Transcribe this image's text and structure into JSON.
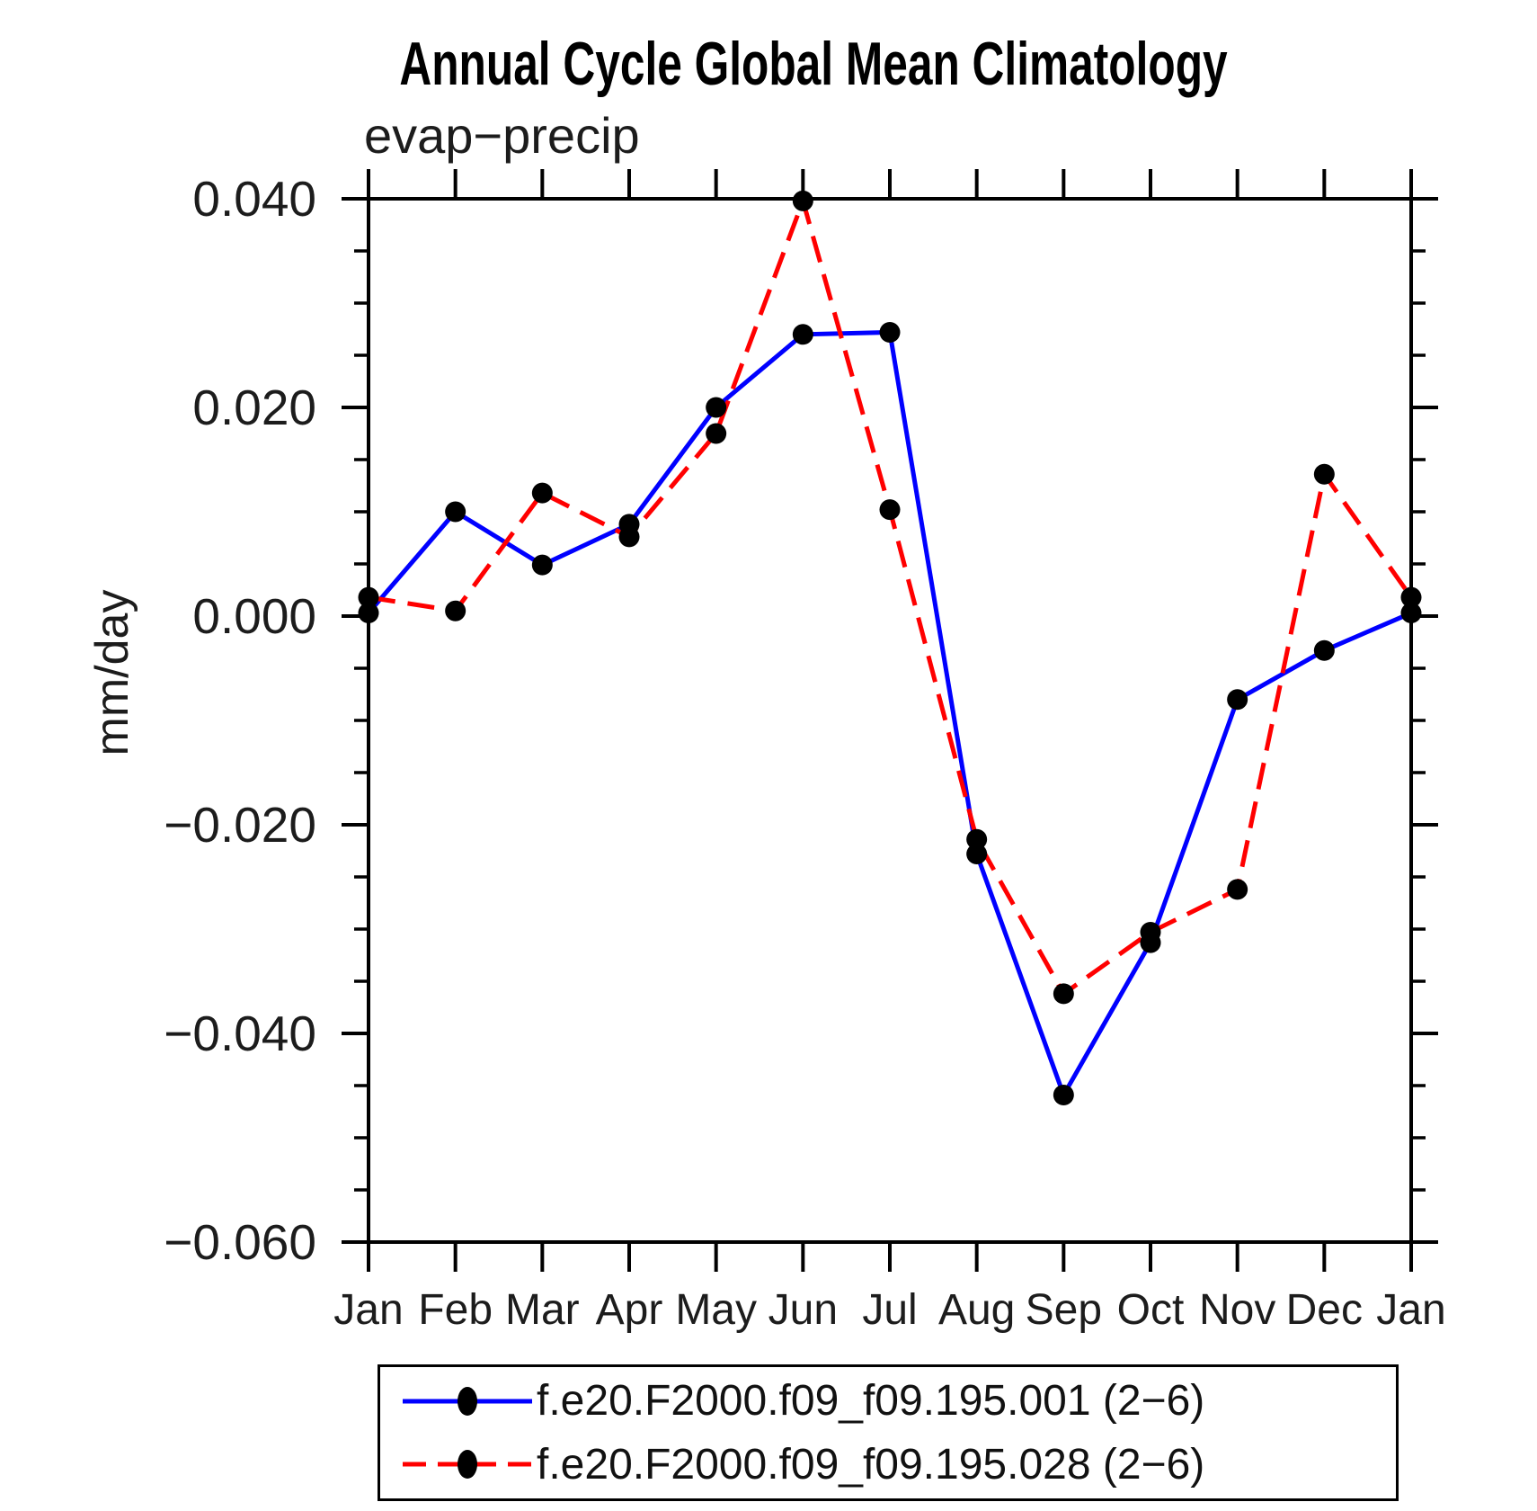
{
  "chart_data": {
    "type": "line",
    "title": "Annual Cycle Global Mean Climatology",
    "subtitle": "evap−precip",
    "ylabel": "mm/day",
    "categories": [
      "Jan",
      "Feb",
      "Mar",
      "Apr",
      "May",
      "Jun",
      "Jul",
      "Aug",
      "Sep",
      "Oct",
      "Nov",
      "Dec",
      "Jan"
    ],
    "ylim": [
      -0.06,
      0.04
    ],
    "y_major_step": 0.02,
    "y_minor_step": 0.005,
    "y_tick_labels": [
      "0.040",
      "0.020",
      "0.000",
      "−0.020",
      "−0.040",
      "−0.060"
    ],
    "grid": false,
    "legend_position": "bottom",
    "marker": {
      "shape": "circle",
      "color": "#000000",
      "radius": 11.5
    },
    "axis_color": "#000000",
    "text_color": "#1c1c1c",
    "series": [
      {
        "name": "f.e20.F2000.f09_f09.195.001 (2−6)",
        "color": "#0000ff",
        "line_style": "solid",
        "values": [
          0.0003,
          0.01,
          0.0049,
          0.0088,
          0.02,
          0.027,
          0.0272,
          -0.0228,
          -0.0459,
          -0.0313,
          -0.008,
          -0.0033,
          0.0003
        ]
      },
      {
        "name": "f.e20.F2000.f09_f09.195.028 (2−6)",
        "color": "#ff0000",
        "line_style": "dashed",
        "values": [
          0.0018,
          0.0005,
          0.0118,
          0.0076,
          0.0175,
          0.0398,
          0.0102,
          -0.0214,
          -0.0362,
          -0.0303,
          -0.0262,
          0.0136,
          0.0018
        ]
      }
    ]
  }
}
